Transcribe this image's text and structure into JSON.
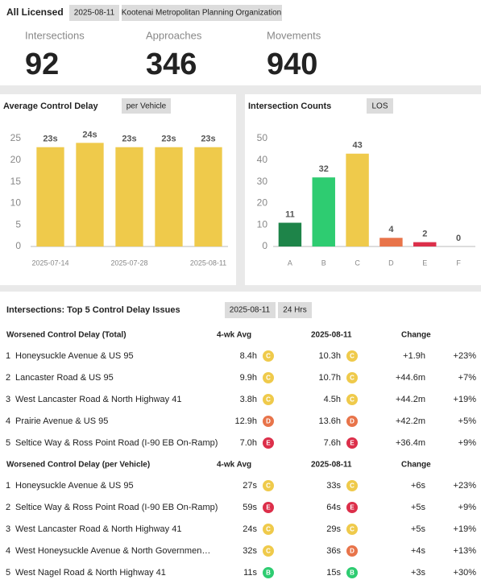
{
  "header": {
    "title": "All Licensed",
    "date": "2025-08-11",
    "organization": "Kootenai Metropolitan Planning Organization"
  },
  "stats": [
    {
      "label": "Intersections",
      "value": 92
    },
    {
      "label": "Approaches",
      "value": 346
    },
    {
      "label": "Movements",
      "value": 940
    }
  ],
  "chart_data": [
    {
      "type": "bar",
      "title": "Average Control Delay",
      "badge": "per Vehicle",
      "categories": [
        "2025-07-14",
        null,
        "2025-07-28",
        null,
        "2025-08-11"
      ],
      "values": [
        23,
        24,
        23,
        23,
        23
      ],
      "value_labels": [
        "23s",
        "24s",
        "23s",
        "23s",
        "23s"
      ],
      "color": "#efca4b",
      "ylim": [
        0,
        25
      ],
      "yticks": [
        0,
        5,
        10,
        15,
        20,
        25
      ]
    },
    {
      "type": "bar",
      "title": "Intersection Counts",
      "badge": "LOS",
      "categories": [
        "A",
        "B",
        "C",
        "D",
        "E",
        "F"
      ],
      "values": [
        11,
        32,
        43,
        4,
        2,
        0
      ],
      "colors": [
        "#1e8449",
        "#2ecc71",
        "#efca4b",
        "#e8744a",
        "#dc2f4a",
        "#8b1a1a"
      ],
      "ylim": [
        0,
        50
      ],
      "yticks": [
        0,
        10,
        20,
        30,
        40,
        50
      ]
    }
  ],
  "table_section": {
    "title": "Intersections: Top 5 Control Delay Issues",
    "date": "2025-08-11",
    "period": "24 Hrs",
    "tables": [
      {
        "title": "Worsened Control Delay (Total)",
        "columns": [
          "4-wk Avg",
          "2025-08-11",
          "Change"
        ],
        "rows": [
          [
            "1",
            "Honeysuckle Avenue & US 95",
            "8.4h",
            "C",
            "10.3h",
            "C",
            "+1.9h",
            "+23%"
          ],
          [
            "2",
            "Lancaster Road & US 95",
            "9.9h",
            "C",
            "10.7h",
            "C",
            "+44.6m",
            "+7%"
          ],
          [
            "3",
            "West Lancaster Road & North Highway 41",
            "3.8h",
            "C",
            "4.5h",
            "C",
            "+44.2m",
            "+19%"
          ],
          [
            "4",
            "Prairie Avenue & US 95",
            "12.9h",
            "D",
            "13.6h",
            "D",
            "+42.2m",
            "+5%"
          ],
          [
            "5",
            "Seltice Way & Ross Point Road (I-90 EB On-Ramp)",
            "7.0h",
            "E",
            "7.6h",
            "E",
            "+36.4m",
            "+9%"
          ]
        ]
      },
      {
        "title": "Worsened Control Delay (per Vehicle)",
        "columns": [
          "4-wk Avg",
          "2025-08-11",
          "Change"
        ],
        "rows": [
          [
            "1",
            "Honeysuckle Avenue & US 95",
            "27s",
            "C",
            "33s",
            "C",
            "+6s",
            "+23%"
          ],
          [
            "2",
            "Seltice Way & Ross Point Road (I-90 EB On-Ramp)",
            "59s",
            "E",
            "64s",
            "E",
            "+5s",
            "+9%"
          ],
          [
            "3",
            "West Lancaster Road & North Highway 41",
            "24s",
            "C",
            "29s",
            "C",
            "+5s",
            "+19%"
          ],
          [
            "4",
            "West Honeysuckle Avenue & North Governmen…",
            "32s",
            "C",
            "36s",
            "D",
            "+4s",
            "+13%"
          ],
          [
            "5",
            "West Nagel Road & North Highway 41",
            "11s",
            "B",
            "15s",
            "B",
            "+3s",
            "+30%"
          ]
        ]
      }
    ]
  }
}
